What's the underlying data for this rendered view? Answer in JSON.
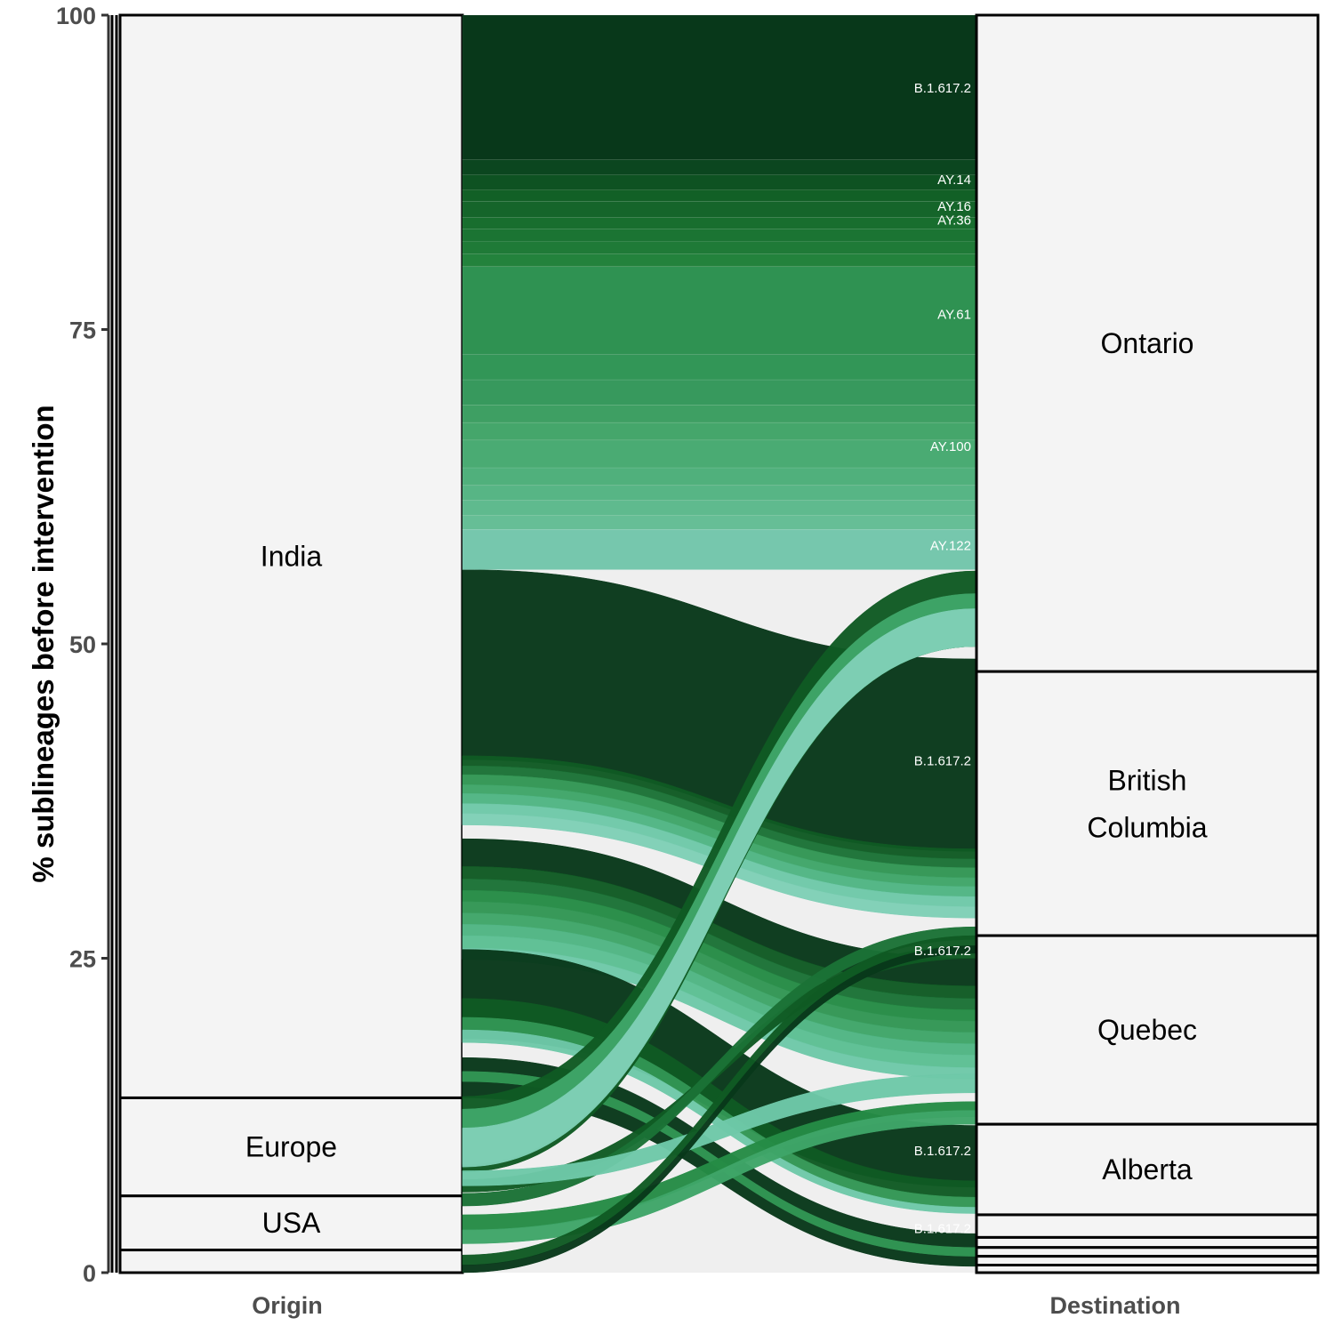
{
  "chart_data": {
    "type": "alluvial",
    "ylabel": "% sublineages before intervention",
    "ylim": [
      0,
      100
    ],
    "yticks": [
      0,
      25,
      50,
      75,
      100
    ],
    "axes": [
      "Origin",
      "Destination"
    ],
    "origin_strata": [
      {
        "label": "India",
        "range": [
          13.9,
          100
        ]
      },
      {
        "label": "Europe",
        "range": [
          6.1,
          13.9
        ]
      },
      {
        "label": "USA",
        "range": [
          1.8,
          6.1
        ]
      },
      {
        "label": "",
        "range": [
          0,
          1.8
        ]
      }
    ],
    "destination_strata": [
      {
        "label": "Ontario",
        "range": [
          47.8,
          100
        ]
      },
      {
        "label": "British Columbia",
        "range": [
          26.8,
          47.8
        ]
      },
      {
        "label": "Quebec",
        "range": [
          11.8,
          26.8
        ]
      },
      {
        "label": "Alberta",
        "range": [
          4.6,
          11.8
        ]
      },
      {
        "label": "",
        "range": [
          2.8,
          4.6
        ]
      },
      {
        "label": "",
        "range": [
          2.0,
          2.8
        ]
      },
      {
        "label": "",
        "range": [
          1.3,
          2.0
        ]
      },
      {
        "label": "",
        "range": [
          0.6,
          1.3
        ]
      },
      {
        "label": "",
        "range": [
          0,
          0.6
        ]
      }
    ],
    "flow_labels": [
      {
        "text": "B.1.617.2",
        "y": 94.2
      },
      {
        "text": "AY.14",
        "y": 86.9
      },
      {
        "text": "AY.16",
        "y": 84.8
      },
      {
        "text": "AY.36",
        "y": 83.7
      },
      {
        "text": "AY.61",
        "y": 76.2
      },
      {
        "text": "AY.100",
        "y": 65.7
      },
      {
        "text": "AY.122",
        "y": 57.8
      },
      {
        "text": "B.1.617.2",
        "y": 40.7
      },
      {
        "text": "B.1.617.2",
        "y": 25.6
      },
      {
        "text": "B.1.617.2",
        "y": 9.7
      },
      {
        "text": "B.1.617.2",
        "y": 3.5
      }
    ],
    "band_colors": [
      "#08381a",
      "#0f5a23",
      "#1b7236",
      "#258b45",
      "#329654",
      "#3fa568",
      "#4fb583",
      "#5cbf93",
      "#6ec8a8",
      "#7fcfb6"
    ],
    "india_ontario_bands": [
      {
        "range": [
          88.5,
          100
        ],
        "color": "#08381a"
      },
      {
        "range": [
          87.3,
          88.5
        ],
        "color": "#0b461f"
      },
      {
        "range": [
          86.1,
          87.3
        ],
        "color": "#0e5222"
      },
      {
        "range": [
          85.2,
          86.1
        ],
        "color": "#126026"
      },
      {
        "range": [
          83.9,
          85.2
        ],
        "color": "#15652a"
      },
      {
        "range": [
          83.0,
          83.9
        ],
        "color": "#186e2e"
      },
      {
        "range": [
          82.0,
          83.0
        ],
        "color": "#1b7433"
      },
      {
        "range": [
          81.0,
          82.0
        ],
        "color": "#1f7a37"
      },
      {
        "range": [
          80.0,
          81.0
        ],
        "color": "#23823c"
      },
      {
        "range": [
          73.0,
          80.0
        ],
        "color": "#2f9252"
      },
      {
        "range": [
          71.0,
          73.0
        ],
        "color": "#329657"
      },
      {
        "range": [
          69.0,
          71.0
        ],
        "color": "#37995d"
      },
      {
        "range": [
          67.6,
          69.0
        ],
        "color": "#3e9f63"
      },
      {
        "range": [
          66.2,
          67.6
        ],
        "color": "#45a66b"
      },
      {
        "range": [
          64.0,
          66.2
        ],
        "color": "#4aab73"
      },
      {
        "range": [
          62.6,
          64.0
        ],
        "color": "#50b07c"
      },
      {
        "range": [
          61.4,
          62.6
        ],
        "color": "#57b585"
      },
      {
        "range": [
          60.2,
          61.4
        ],
        "color": "#5fba8e"
      },
      {
        "range": [
          59.1,
          60.2
        ],
        "color": "#66be96"
      },
      {
        "range": [
          55.9,
          59.1
        ],
        "color": "#76c7ad"
      }
    ],
    "flows": [
      {
        "from": [
          40.8,
          55.9
        ],
        "to": [
          33.5,
          48.8
        ],
        "color": "#08381a"
      },
      {
        "from": [
          40.3,
          41.1
        ],
        "to": [
          32.9,
          33.7
        ],
        "color": "#0f5a23"
      },
      {
        "from": [
          39.6,
          40.3
        ],
        "to": [
          32.2,
          32.9
        ],
        "color": "#1b7236"
      },
      {
        "from": [
          38.8,
          39.6
        ],
        "to": [
          31.4,
          32.2
        ],
        "color": "#329654"
      },
      {
        "from": [
          38.1,
          38.8
        ],
        "to": [
          30.7,
          31.4
        ],
        "color": "#3fa568"
      },
      {
        "from": [
          37.3,
          38.1
        ],
        "to": [
          29.9,
          30.7
        ],
        "color": "#4fb583"
      },
      {
        "from": [
          36.5,
          37.3
        ],
        "to": [
          29.1,
          29.9
        ],
        "color": "#6ec8a8"
      },
      {
        "from": [
          35.6,
          36.5
        ],
        "to": [
          28.2,
          29.1
        ],
        "color": "#7fcfb6"
      },
      {
        "from": [
          32.3,
          34.5
        ],
        "to": [
          22.8,
          25.0
        ],
        "color": "#08381a"
      },
      {
        "from": [
          31.3,
          32.3
        ],
        "to": [
          21.8,
          22.8
        ],
        "color": "#0f5a23"
      },
      {
        "from": [
          30.4,
          31.3
        ],
        "to": [
          20.9,
          21.8
        ],
        "color": "#1b7236"
      },
      {
        "from": [
          29.5,
          30.4
        ],
        "to": [
          20.0,
          20.9
        ],
        "color": "#258b45"
      },
      {
        "from": [
          28.6,
          29.5
        ],
        "to": [
          19.1,
          20.0
        ],
        "color": "#329654"
      },
      {
        "from": [
          27.7,
          28.6
        ],
        "to": [
          18.2,
          19.1
        ],
        "color": "#3fa568"
      },
      {
        "from": [
          26.8,
          27.7
        ],
        "to": [
          17.3,
          18.2
        ],
        "color": "#4fb583"
      },
      {
        "from": [
          25.8,
          26.8
        ],
        "to": [
          16.3,
          17.3
        ],
        "color": "#5cbf93"
      },
      {
        "from": [
          24.9,
          25.8
        ],
        "to": [
          15.4,
          16.3
        ],
        "color": "#6ec8a8"
      },
      {
        "from": [
          18.6,
          25.7
        ],
        "to": [
          6.8,
          11.7
        ],
        "color": "#08381a"
      },
      {
        "from": [
          20.3,
          21.8
        ],
        "to": [
          6.0,
          7.3
        ],
        "color": "#0f5a23"
      },
      {
        "from": [
          19.3,
          20.3
        ],
        "to": [
          5.2,
          6.0
        ],
        "color": "#329654"
      },
      {
        "from": [
          18.3,
          19.3
        ],
        "to": [
          4.7,
          5.2
        ],
        "color": "#6ec8a8"
      },
      {
        "from": [
          13.9,
          17.1
        ],
        "to": [
          0.5,
          3.1
        ],
        "color": "#08381a"
      },
      {
        "from": [
          15.2,
          16.0
        ],
        "to": [
          1.3,
          2.0
        ],
        "color": "#329654"
      },
      {
        "from": [
          8.0,
          14.0
        ],
        "to": [
          49.8,
          55.8
        ],
        "color": "#0f5a23"
      },
      {
        "from": [
          8.6,
          13.0
        ],
        "to": [
          49.8,
          54.0
        ],
        "color": "#3fa568"
      },
      {
        "from": [
          8.4,
          11.5
        ],
        "to": [
          49.8,
          52.8
        ],
        "color": "#7fcfb6"
      },
      {
        "from": [
          6.4,
          7.4
        ],
        "to": [
          25.0,
          26.0
        ],
        "color": "#0f5a23"
      },
      {
        "from": [
          5.3,
          6.3
        ],
        "to": [
          26.5,
          27.5
        ],
        "color": "#1b7236"
      },
      {
        "from": [
          6.9,
          8.1
        ],
        "to": [
          14.3,
          15.8
        ],
        "color": "#6ec8a8"
      },
      {
        "from": [
          3.4,
          4.6
        ],
        "to": [
          12.4,
          13.6
        ],
        "color": "#258b45"
      },
      {
        "from": [
          2.3,
          3.4
        ],
        "to": [
          11.8,
          12.9
        ],
        "color": "#3fa568"
      },
      {
        "from": [
          0.6,
          1.4
        ],
        "to": [
          26.0,
          26.8
        ],
        "color": "#0f5a23"
      },
      {
        "from": [
          0.0,
          0.6
        ],
        "to": [
          25.4,
          26.0
        ],
        "color": "#08381a"
      }
    ]
  }
}
